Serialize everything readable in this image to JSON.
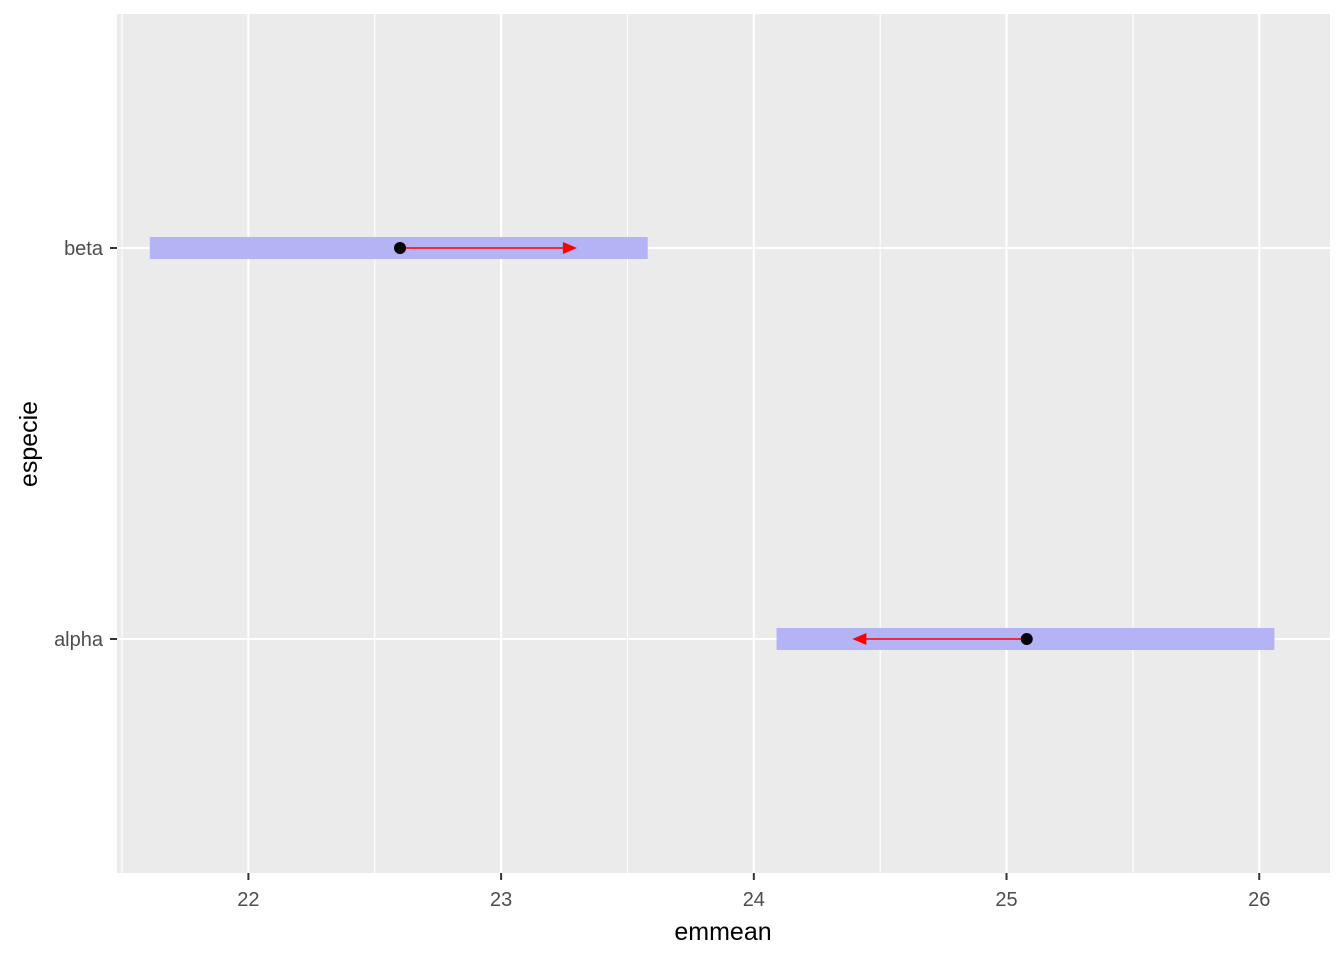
{
  "chart_data": {
    "type": "emmeans-plot",
    "xlabel": "emmean",
    "ylabel": "especie",
    "xlim": [
      21.48,
      26.28
    ],
    "x_ticks": [
      22,
      23,
      24,
      25,
      26
    ],
    "x_minor_ticks": [
      21.5,
      22.5,
      23.5,
      24.5,
      25.5
    ],
    "categories": [
      "alpha",
      "beta"
    ],
    "grid": true,
    "panel_background": "#ebebeb",
    "grid_color": "#ffffff",
    "ci_color": "#b3b3f5",
    "arrow_color": "#ff0000",
    "point_color": "#000000",
    "estimates": [
      {
        "category": "alpha",
        "emmean": 25.08,
        "ci_low": 24.09,
        "ci_high": 26.06,
        "arrow_to": 24.39
      },
      {
        "category": "beta",
        "emmean": 22.6,
        "ci_low": 21.61,
        "ci_high": 23.58,
        "arrow_to": 23.3
      }
    ]
  }
}
